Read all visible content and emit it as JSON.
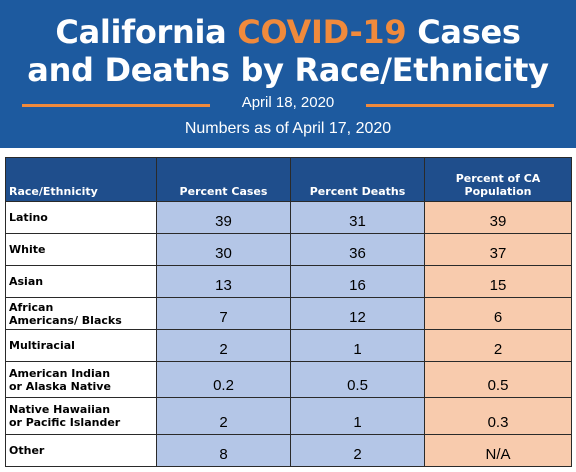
{
  "header": {
    "title_start": "California",
    "title_highlight": "COVID-19",
    "title_end": "Cases",
    "title_line2": "and Deaths by Race/Ethnicity",
    "date": "April 18, 2020",
    "subtitle": "Numbers as of April 17, 2020"
  },
  "table": {
    "columns": [
      "Race/Ethnicity",
      "Percent Cases",
      "Percent Deaths",
      "Percent of CA Population"
    ],
    "rows": [
      [
        "Latino",
        39,
        31,
        39
      ],
      [
        "White",
        30,
        36,
        37
      ],
      [
        "Asian",
        13,
        16,
        15
      ],
      [
        "African Americans/ Blacks",
        7,
        12,
        6
      ],
      [
        "Multiracial",
        2,
        1,
        2
      ],
      [
        "American Indian or Alaska Native",
        0.2,
        0.5,
        0.5
      ],
      [
        "Native Hawaiian or Pacific Islander",
        2,
        1,
        0.3
      ],
      [
        "Other",
        8,
        2,
        "N/A"
      ]
    ]
  }
}
